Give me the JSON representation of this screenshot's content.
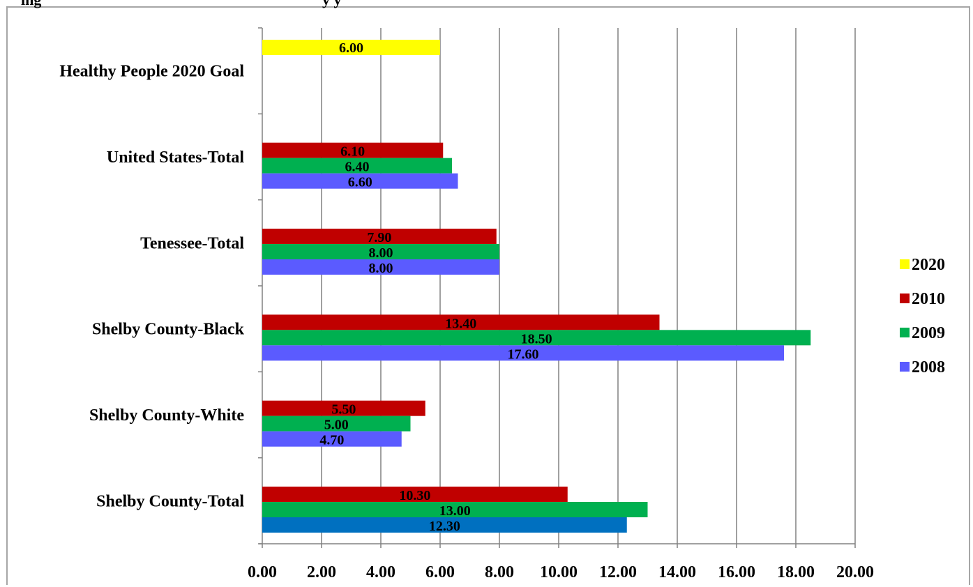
{
  "title_fragment": "ing",
  "title_fragment2": "y y",
  "colors": {
    "2020": "#ffff00",
    "2010": "#c00000",
    "2009": "#00b050",
    "2008": "#5b5bff",
    "shelby_total_2008": "#0070c0",
    "gridline": "#808080",
    "border": "#a6a6a6"
  },
  "chart_data": {
    "type": "bar",
    "orientation": "horizontal",
    "title": "",
    "xlabel": "",
    "ylabel": "",
    "xlim": [
      0,
      20
    ],
    "x_ticks": [
      "0.00",
      "2.00",
      "4.00",
      "6.00",
      "8.00",
      "10.00",
      "12.00",
      "14.00",
      "16.00",
      "18.00",
      "20.00"
    ],
    "grid": "vertical",
    "legend_position": "right",
    "categories": [
      "Shelby County-Total",
      "Shelby County-White",
      "Shelby County-Black",
      "Tenessee-Total",
      "United States-Total",
      "Healthy People 2020 Goal"
    ],
    "series": [
      {
        "name": "2008",
        "values": [
          12.3,
          4.7,
          17.6,
          8.0,
          6.6,
          null
        ],
        "labels": [
          "12.30",
          "4.70",
          "17.60",
          "8.00",
          "6.60",
          null
        ]
      },
      {
        "name": "2009",
        "values": [
          13.0,
          5.0,
          18.5,
          8.0,
          6.4,
          null
        ],
        "labels": [
          "13.00",
          "5.00",
          "18.50",
          "8.00",
          "6.40",
          null
        ]
      },
      {
        "name": "2010",
        "values": [
          10.3,
          5.5,
          13.4,
          7.9,
          6.1,
          null
        ],
        "labels": [
          "10.30",
          "5.50",
          "13.40",
          "7.90",
          "6.10",
          null
        ]
      },
      {
        "name": "2020",
        "values": [
          null,
          null,
          null,
          null,
          null,
          6.0
        ],
        "labels": [
          null,
          null,
          null,
          null,
          null,
          "6.00"
        ]
      }
    ],
    "legend": [
      "2020",
      "2010",
      "2009",
      "2008"
    ]
  }
}
